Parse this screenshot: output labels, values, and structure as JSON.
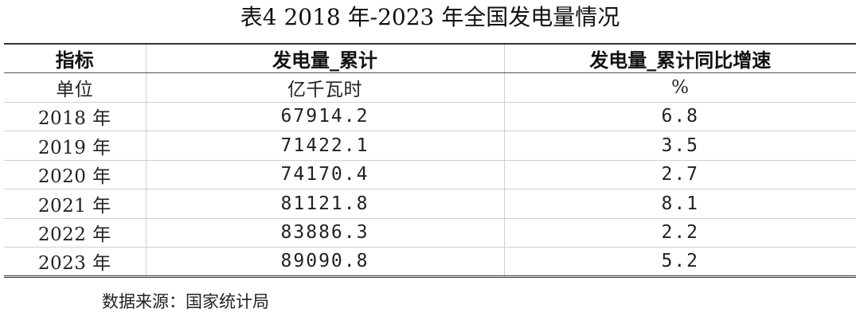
{
  "title": "表4 2018 年-2023 年全国发电量情况",
  "table": {
    "headers": [
      "指标",
      "发电量_累计",
      "发电量_累计同比增速"
    ],
    "units": [
      "单位",
      "亿千瓦时",
      "%"
    ],
    "rows": [
      [
        "2018 年",
        "67914.2",
        "6.8"
      ],
      [
        "2019 年",
        "71422.1",
        "3.5"
      ],
      [
        "2020 年",
        "74170.4",
        "2.7"
      ],
      [
        "2021 年",
        "81121.8",
        "8.1"
      ],
      [
        "2022 年",
        "83886.3",
        "2.2"
      ],
      [
        "2023 年",
        "89090.8",
        "5.2"
      ]
    ]
  },
  "source": "数据来源：国家统计局"
}
